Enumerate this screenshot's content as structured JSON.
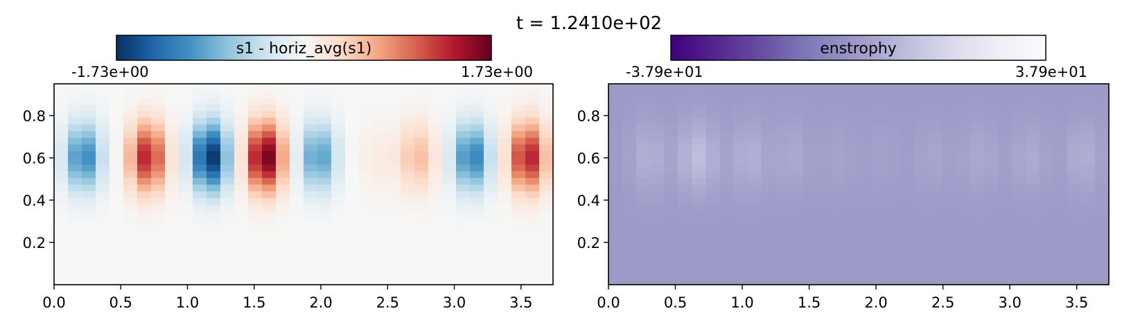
{
  "figure": {
    "suptitle": "t = 1.2410e+02"
  },
  "chart_data": [
    {
      "type": "heatmap",
      "title": "",
      "xlabel": "",
      "ylabel": "",
      "xlim": [
        0.0,
        3.74
      ],
      "ylim": [
        0.0,
        0.95
      ],
      "xticks": [
        0.0,
        0.5,
        1.0,
        1.5,
        2.0,
        2.5,
        3.0,
        3.5
      ],
      "yticks": [
        0.2,
        0.4,
        0.6,
        0.8
      ],
      "xtick_labels": [
        "0.0",
        "0.5",
        "1.0",
        "1.5",
        "2.0",
        "2.5",
        "3.0",
        "3.5"
      ],
      "ytick_labels": [
        "0.2",
        "0.4",
        "0.6",
        "0.8"
      ],
      "grid": false,
      "colorbar": {
        "label": "s1 - horiz_avg(s1)",
        "min": -1.73,
        "max": 1.73,
        "min_label": "-1.73e+00",
        "max_label": "1.73e+00",
        "colormap": "RdBu_r",
        "colors": [
          "#053061",
          "#2166ac",
          "#4393c3",
          "#92c5de",
          "#d1e5f0",
          "#f7f7f7",
          "#fddbc7",
          "#f4a582",
          "#d6604d",
          "#b2182b",
          "#67001f"
        ],
        "placement": "top"
      },
      "field": {
        "description_values": "cell anomaly amplitude profile",
        "nx": 36,
        "ny": 30,
        "cells": [
          {
            "x": 0.22,
            "amp": -1.15
          },
          {
            "x": 0.7,
            "amp": 1.35
          },
          {
            "x": 1.17,
            "amp": -1.73
          },
          {
            "x": 1.58,
            "amp": 1.73
          },
          {
            "x": 1.98,
            "amp": -1.0
          },
          {
            "x": 2.42,
            "amp": 0.15
          },
          {
            "x": 2.72,
            "amp": 0.55
          },
          {
            "x": 3.13,
            "amp": -1.2
          },
          {
            "x": 3.55,
            "amp": 1.4
          }
        ],
        "center_y": 0.6
      }
    },
    {
      "type": "heatmap",
      "title": "",
      "xlabel": "",
      "ylabel": "",
      "xlim": [
        0.0,
        3.74
      ],
      "ylim": [
        0.0,
        0.95
      ],
      "xticks": [
        0.0,
        0.5,
        1.0,
        1.5,
        2.0,
        2.5,
        3.0,
        3.5
      ],
      "yticks": [
        0.2,
        0.4,
        0.6,
        0.8
      ],
      "xtick_labels": [
        "0.0",
        "0.5",
        "1.0",
        "1.5",
        "2.0",
        "2.5",
        "3.0",
        "3.5"
      ],
      "ytick_labels": [
        "0.2",
        "0.4",
        "0.6",
        "0.8"
      ],
      "grid": false,
      "colorbar": {
        "label": "enstrophy",
        "min": -37.9,
        "max": 37.9,
        "min_label": "-3.79e+01",
        "max_label": "3.79e+01",
        "colormap": "Purples_r",
        "colors": [
          "#3f007d",
          "#54278f",
          "#6a51a3",
          "#807dba",
          "#9e9ac8",
          "#bcbddc",
          "#dadaeb",
          "#efedf5",
          "#fcfbfd"
        ],
        "placement": "top"
      },
      "field": {
        "background": 0.0,
        "nx": 36,
        "ny": 30,
        "cells": [
          {
            "x": 0.3,
            "amp": 6.0
          },
          {
            "x": 0.67,
            "amp": 10.0
          },
          {
            "x": 1.05,
            "amp": 6.0
          },
          {
            "x": 1.37,
            "amp": 4.0
          },
          {
            "x": 1.72,
            "amp": 2.5
          },
          {
            "x": 2.05,
            "amp": 2.0
          },
          {
            "x": 2.42,
            "amp": 3.0
          },
          {
            "x": 2.77,
            "amp": 4.0
          },
          {
            "x": 3.15,
            "amp": 4.5
          },
          {
            "x": 3.55,
            "amp": 5.5
          }
        ],
        "center_y": 0.6
      }
    }
  ]
}
